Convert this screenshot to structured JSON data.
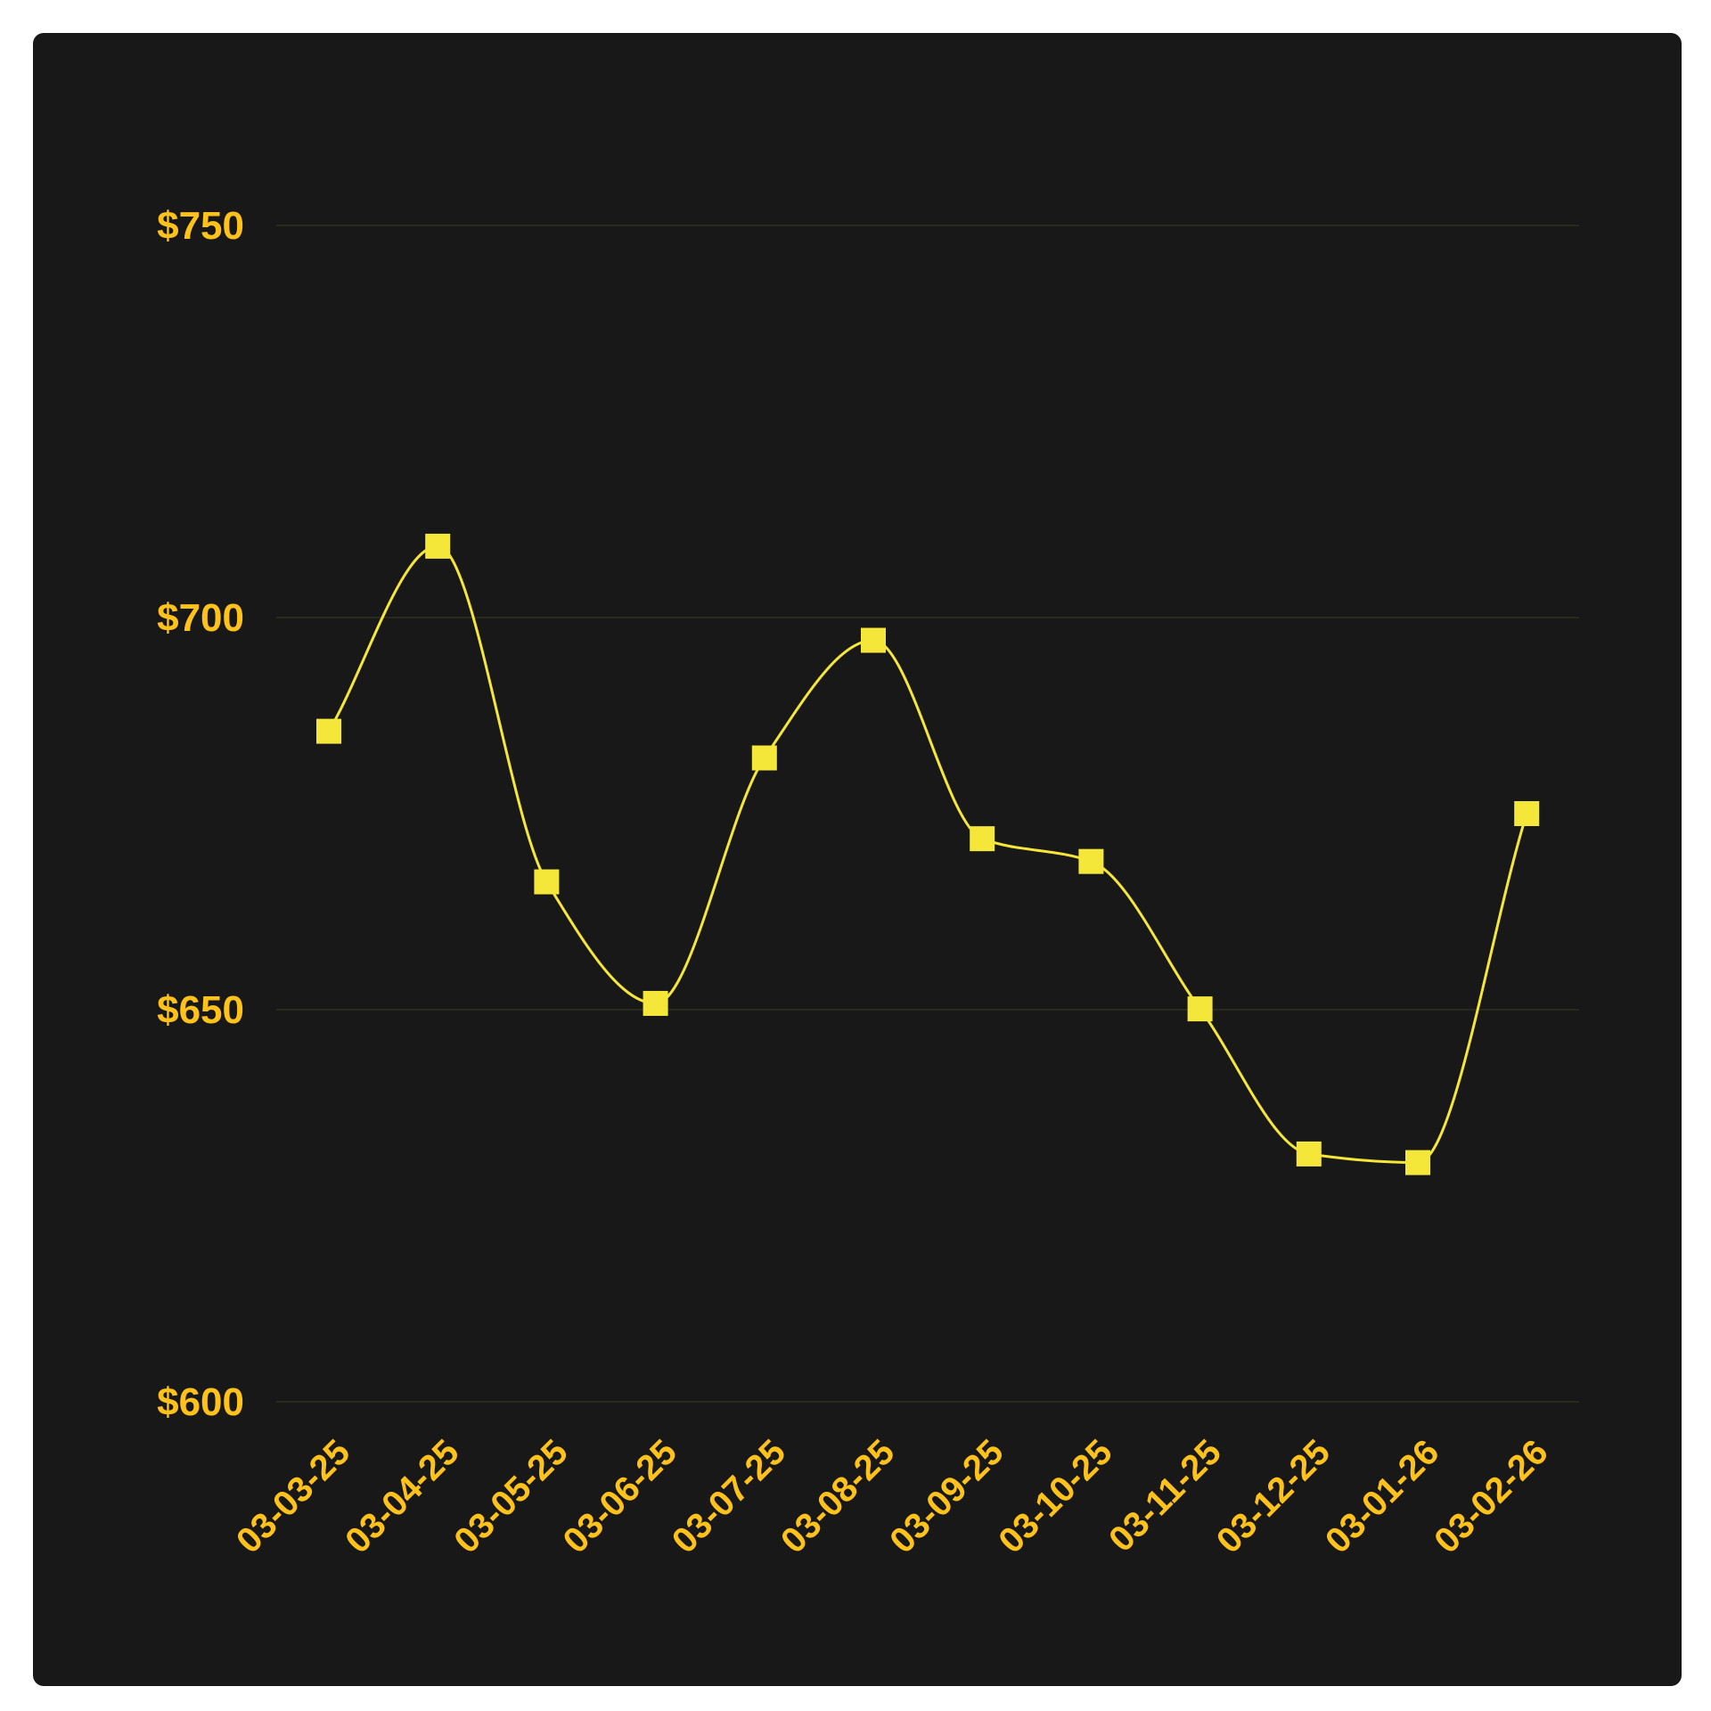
{
  "chart_data": {
    "type": "line",
    "x": [
      "03-03-25",
      "03-04-25",
      "03-05-25",
      "03-06-25",
      "03-07-25",
      "03-08-25",
      "03-09-25",
      "03-10-25",
      "03-11-25",
      "03-12-25",
      "03-01-26",
      "03-02-26"
    ],
    "series": [
      {
        "values": [
          685.5,
          709.1,
          666.3,
          650.8,
          682.1,
          697.1,
          671.8,
          668.9,
          650.1,
          631.6,
          630.5,
          675.0
        ]
      }
    ],
    "ylim": [
      600,
      750
    ],
    "yticks": [
      600,
      650,
      700,
      750
    ],
    "ytick_labels": [
      "$600",
      "$650",
      "$700",
      "$750"
    ],
    "grid": true,
    "line_color": "#F5E63A",
    "marker": "square",
    "label_color": "#FFC21A",
    "background": "#181818"
  }
}
